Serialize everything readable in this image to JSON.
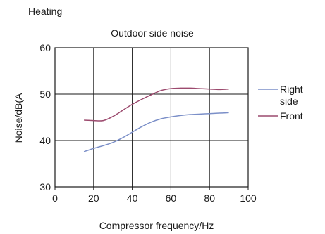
{
  "heading": "Heating",
  "chart_data": {
    "type": "line",
    "title": "Outdoor side noise",
    "xlabel": "Compressor frequency/Hz",
    "ylabel": "Noise/dB(A",
    "xlim": [
      0,
      100
    ],
    "ylim": [
      30,
      60
    ],
    "xticks": [
      0,
      20,
      40,
      60,
      80,
      100
    ],
    "yticks": [
      30,
      40,
      50,
      60
    ],
    "grid": true,
    "legend_position": "right",
    "series": [
      {
        "name": "Right side",
        "legend_lines": [
          "Right",
          "side"
        ],
        "color": "#7b8fc8",
        "points": [
          [
            15,
            37.6
          ],
          [
            20,
            38.3
          ],
          [
            25,
            38.9
          ],
          [
            30,
            39.6
          ],
          [
            35,
            40.6
          ],
          [
            40,
            41.8
          ],
          [
            45,
            43.0
          ],
          [
            50,
            44.0
          ],
          [
            55,
            44.7
          ],
          [
            60,
            45.1
          ],
          [
            65,
            45.4
          ],
          [
            70,
            45.6
          ],
          [
            75,
            45.7
          ],
          [
            80,
            45.8
          ],
          [
            85,
            45.9
          ],
          [
            90,
            46.0
          ]
        ]
      },
      {
        "name": "Front",
        "legend_lines": [
          "Front"
        ],
        "color": "#9c4a6e",
        "points": [
          [
            15,
            44.4
          ],
          [
            20,
            44.3
          ],
          [
            25,
            44.3
          ],
          [
            30,
            45.2
          ],
          [
            35,
            46.5
          ],
          [
            40,
            47.8
          ],
          [
            45,
            48.9
          ],
          [
            50,
            49.9
          ],
          [
            55,
            50.8
          ],
          [
            60,
            51.2
          ],
          [
            65,
            51.3
          ],
          [
            70,
            51.3
          ],
          [
            75,
            51.2
          ],
          [
            80,
            51.1
          ],
          [
            85,
            51.0
          ],
          [
            90,
            51.1
          ]
        ]
      }
    ]
  }
}
